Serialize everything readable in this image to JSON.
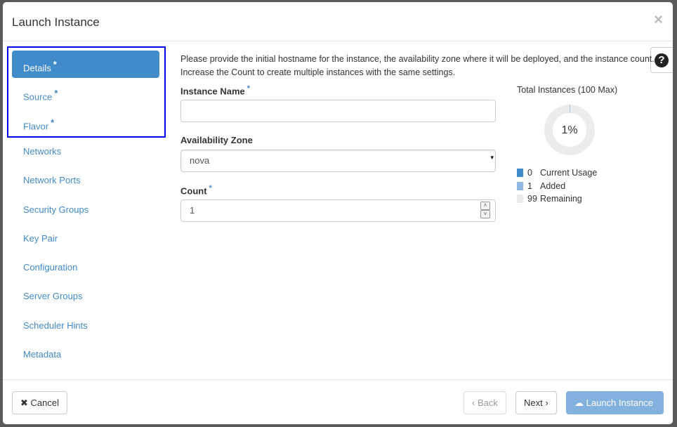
{
  "modal": {
    "title": "Launch Instance",
    "close_icon": "×"
  },
  "nav": {
    "items": [
      {
        "label": "Details",
        "required": "*",
        "active": true
      },
      {
        "label": "Source",
        "required": "*"
      },
      {
        "label": "Flavor",
        "required": "*"
      },
      {
        "label": "Networks"
      },
      {
        "label": "Network Ports"
      },
      {
        "label": "Security Groups"
      },
      {
        "label": "Key Pair"
      },
      {
        "label": "Configuration"
      },
      {
        "label": "Server Groups"
      },
      {
        "label": "Scheduler Hints"
      },
      {
        "label": "Metadata"
      }
    ]
  },
  "help": {
    "icon": "?"
  },
  "details": {
    "description": "Please provide the initial hostname for the instance, the availability zone where it will be deployed, and the instance count. Increase the Count to create multiple instances with the same settings.",
    "instance_name": {
      "label": "Instance Name",
      "required": "*",
      "value": ""
    },
    "availability_zone": {
      "label": "Availability Zone",
      "value": "nova"
    },
    "count": {
      "label": "Count",
      "required": "*",
      "value": "1"
    }
  },
  "chart": {
    "title": "Total Instances (100 Max)",
    "percent_label": "1%",
    "max": 100,
    "legend": [
      {
        "value": "0",
        "label": "Current Usage",
        "color": "#428bca"
      },
      {
        "value": "1",
        "label": "Added",
        "color": "#8fb8e0"
      },
      {
        "value": "99",
        "label": "Remaining",
        "color": "#ececec"
      }
    ]
  },
  "footer": {
    "cancel": "Cancel",
    "back": "‹ Back",
    "next": "Next ›",
    "launch": "Launch Instance"
  }
}
